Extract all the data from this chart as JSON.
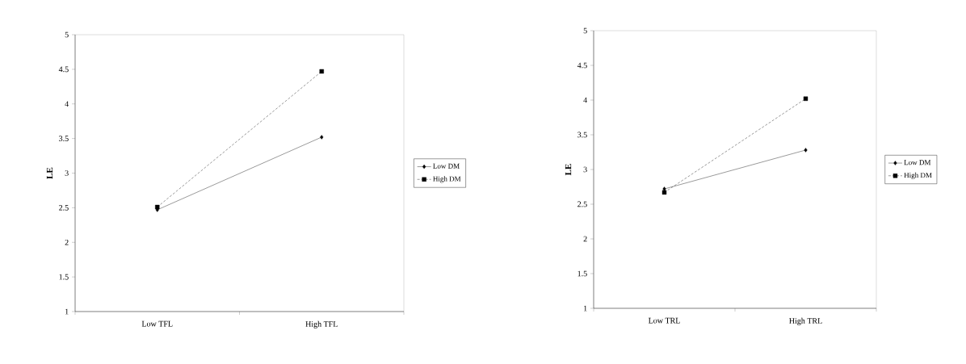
{
  "chart_data": [
    {
      "type": "line",
      "categories": [
        "Low TFL",
        "High TFL"
      ],
      "ylabel": "LE",
      "ylim": [
        1,
        5
      ],
      "yticks": [
        1,
        1.5,
        2,
        2.5,
        3,
        3.5,
        4,
        4.5,
        5
      ],
      "legend": "right",
      "series": [
        {
          "name": "Low DM",
          "color": "#000000",
          "values": [
            2.47,
            3.52
          ],
          "marker": "diamond",
          "line_style": "solid"
        },
        {
          "name": "High DM",
          "color": "#000000",
          "values": [
            2.51,
            4.47
          ],
          "marker": "square",
          "line_style": "dashed"
        }
      ]
    },
    {
      "type": "line",
      "categories": [
        "Low TRL",
        "High TRL"
      ],
      "ylabel": "LE",
      "ylim": [
        1,
        5
      ],
      "yticks": [
        1,
        1.5,
        2,
        2.5,
        3,
        3.5,
        4,
        4.5,
        5
      ],
      "legend": "right",
      "series": [
        {
          "name": "Low DM",
          "color": "#000000",
          "values": [
            2.72,
            3.28
          ],
          "marker": "diamond",
          "line_style": "solid"
        },
        {
          "name": "High DM",
          "color": "#000000",
          "values": [
            2.67,
            4.02
          ],
          "marker": "square",
          "line_style": "dashed"
        }
      ]
    }
  ]
}
